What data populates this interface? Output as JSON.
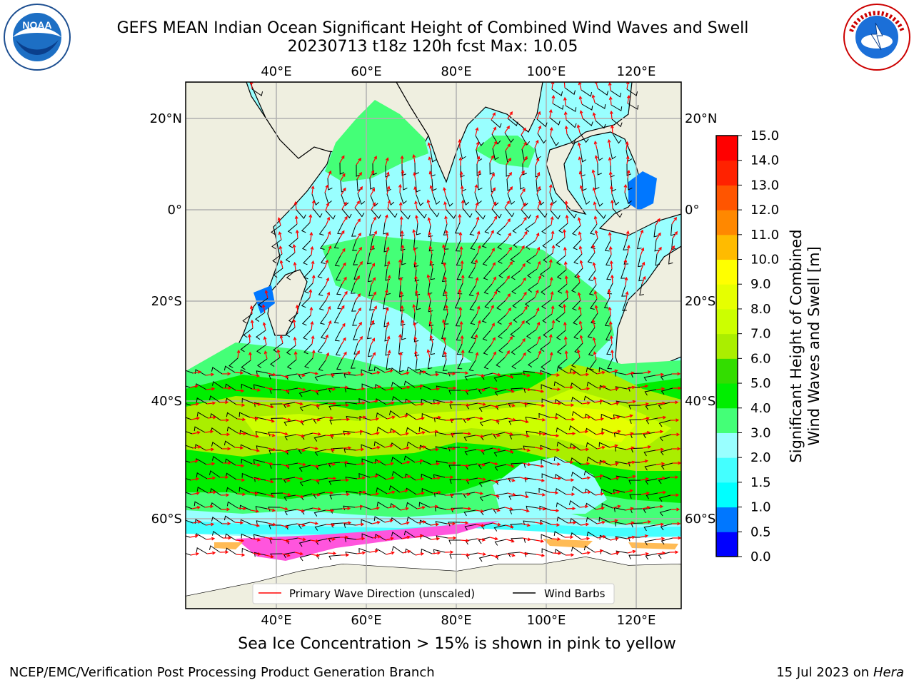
{
  "header": {
    "title_line1": "GEFS MEAN Indian Ocean Significant Height of Combined Wind Waves and Swell",
    "title_line2": "20230713 t18z 120h fcst   Max: 10.05"
  },
  "logos": {
    "left": {
      "text": "NOAA",
      "icon": "noaa-logo"
    },
    "right": {
      "icon": "nws-logo"
    }
  },
  "map": {
    "lon_ticks_top": [
      "40°E",
      "60°E",
      "80°E",
      "100°E",
      "120°E"
    ],
    "lon_ticks_bottom": [
      "40°E",
      "60°E",
      "80°E",
      "100°E",
      "120°E"
    ],
    "lat_ticks_left": [
      "20°N",
      "0°",
      "20°S",
      "40°S",
      "60°S"
    ],
    "lat_ticks_right": [
      "20°N",
      "0°",
      "20°S",
      "40°S",
      "60°S"
    ],
    "legend": {
      "primary_wave": "Primary Wave Direction (unscaled)",
      "wind_barbs": "Wind Barbs"
    },
    "colors": {
      "land": "#efefe0",
      "ice": "#ffffff",
      "wave_arrow": "#ff0000",
      "barb": "#000000"
    }
  },
  "colorbar": {
    "title_line1": "Significant Height of Combined",
    "title_line2": "Wind Waves and Swell [m]",
    "ticks": [
      "0.0",
      "0.5",
      "1.0",
      "1.5",
      "2.0",
      "3.0",
      "4.0",
      "5.0",
      "6.0",
      "7.0",
      "8.0",
      "9.0",
      "10.0",
      "11.0",
      "12.0",
      "13.0",
      "14.0",
      "15.0"
    ],
    "colors": [
      "#0000ff",
      "#0077ff",
      "#00ffff",
      "#44ffff",
      "#99ffff",
      "#44ff77",
      "#00ee00",
      "#33dd00",
      "#aaee00",
      "#ccff00",
      "#e6ff00",
      "#ffff00",
      "#ffbb00",
      "#ff8800",
      "#ff5500",
      "#ff2200",
      "#ff0000"
    ]
  },
  "caption": "Sea Ice Concentration > 15% is shown in pink to yellow",
  "footer": {
    "left": "NCEP/EMC/Verification Post Processing Product Generation Branch",
    "right_prefix": "15 Jul 2023 on ",
    "right_host": "Hera"
  }
}
